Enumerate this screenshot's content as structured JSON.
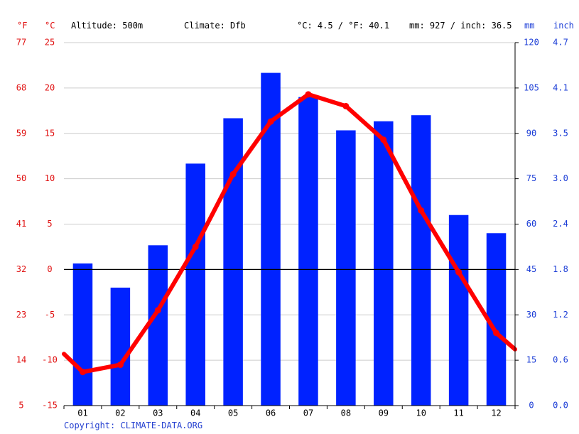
{
  "header": {
    "unit_f": "°F",
    "unit_c": "°C",
    "altitude": "Altitude: 500m",
    "climate": "Climate: Dfb",
    "avg_temp": "°C: 4.5 / °F: 40.1",
    "precip_total": "mm: 927 / inch: 36.5",
    "unit_mm": "mm",
    "unit_inch": "inch"
  },
  "copyright": "Copyright: CLIMATE-DATA.ORG",
  "colors": {
    "temperature": "#ff0000",
    "precipitation": "#0022ff",
    "axis_left": "#e01010",
    "axis_right": "#1a3cd6",
    "grid": "#cccccc",
    "zero_line": "#000000"
  },
  "chart_data": {
    "type": "bar",
    "categories": [
      "01",
      "02",
      "03",
      "04",
      "05",
      "06",
      "07",
      "08",
      "09",
      "10",
      "11",
      "12"
    ],
    "series": [
      {
        "type": "bar",
        "axis": "right",
        "unit": "mm",
        "values": [
          47,
          39,
          53,
          80,
          95,
          110,
          102,
          91,
          94,
          96,
          63,
          57
        ]
      },
      {
        "type": "line",
        "axis": "left",
        "unit": "°C",
        "values": [
          -11.3,
          -10.5,
          -4.5,
          2.5,
          10.5,
          16.3,
          19.3,
          18.0,
          14.3,
          6.5,
          -0.3,
          -7.0
        ],
        "start_value": -9.3,
        "end_value": -8.8
      }
    ],
    "y_left": {
      "label": "°C",
      "ticks": [
        "25",
        "20",
        "15",
        "10",
        "5",
        "0",
        "-5",
        "-10",
        "-15"
      ],
      "range": [
        -15,
        25
      ]
    },
    "y_left_outer": {
      "label": "°F",
      "ticks": [
        "77",
        "68",
        "59",
        "50",
        "41",
        "32",
        "23",
        "14",
        "5"
      ]
    },
    "y_right": {
      "label": "mm",
      "ticks": [
        "120",
        "105",
        "90",
        "75",
        "60",
        "45",
        "30",
        "15",
        "0"
      ],
      "range": [
        0,
        120
      ]
    },
    "y_right_outer": {
      "label": "inch",
      "ticks": [
        "4.7",
        "4.1",
        "3.5",
        "3.0",
        "2.4",
        "1.8",
        "1.2",
        "0.6",
        "0.0"
      ]
    },
    "grid": true,
    "legend": "none"
  }
}
